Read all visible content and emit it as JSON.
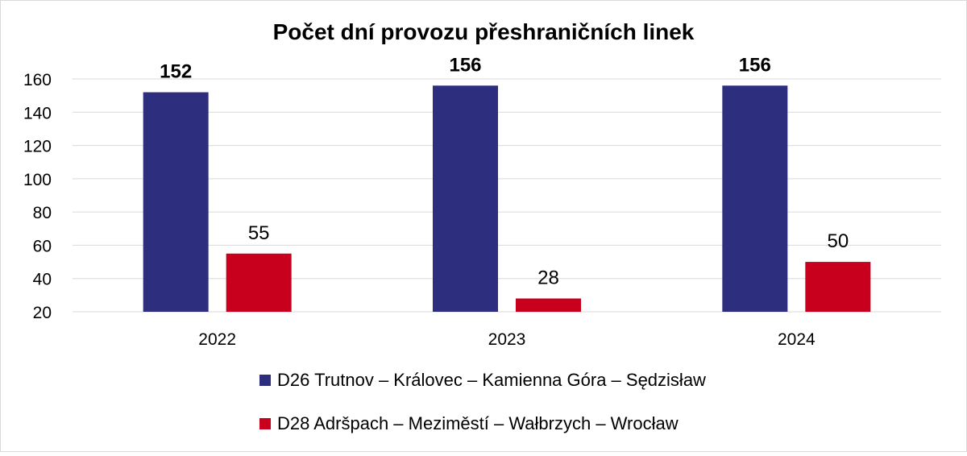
{
  "chart_data": {
    "type": "bar",
    "title": "Počet dní provozu přeshraničních linek",
    "categories": [
      "2022",
      "2023",
      "2024"
    ],
    "series": [
      {
        "name": "D26 Trutnov – Královec – Kamienna Góra – Sędzisław",
        "values": [
          152,
          156,
          156
        ],
        "color": "#2E2E7E",
        "label_bold": true
      },
      {
        "name": "D28 Adršpach – Meziměstí – Wałbrzych – Wrocław",
        "values": [
          55,
          28,
          50
        ],
        "color": "#C8001E",
        "label_bold": false
      }
    ],
    "ylim": [
      20,
      160
    ],
    "yticks": [
      20,
      40,
      60,
      80,
      100,
      120,
      140,
      160
    ],
    "grid": true,
    "legend_position": "bottom"
  }
}
